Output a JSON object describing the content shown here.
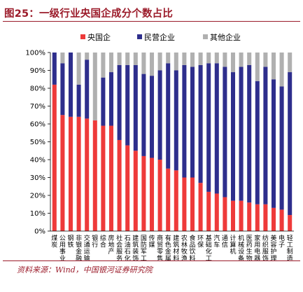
{
  "figure": {
    "title": "图25：一级行业央国企成分个数占比",
    "source": "资料来源：Wind，中国银河证券研究院"
  },
  "chart_data": {
    "type": "bar",
    "stacked": true,
    "categories": [
      "煤炭",
      "公用事业",
      "钢铁",
      "非银金融",
      "交通运输",
      "银行",
      "综合",
      "房地产",
      "社会服务",
      "石油石化",
      "建筑装饰",
      "国防军工",
      "传媒",
      "商贸零售",
      "有色金属",
      "建筑材料",
      "农林牧渔",
      "食品饮料",
      "环保",
      "基础化工",
      "汽车",
      "通信",
      "计算机",
      "机械设备",
      "医药生物",
      "家用电器",
      "纺织服饰",
      "美容护理",
      "电子",
      "轻工制造"
    ],
    "series": [
      {
        "name": "央国企",
        "color": "#ee3a3a",
        "values": [
          82,
          65,
          64,
          64,
          63,
          62,
          59,
          59,
          51,
          48,
          45,
          42,
          41,
          40,
          35,
          34,
          30,
          30,
          27,
          22,
          21,
          19,
          17,
          17,
          16,
          15,
          15,
          13,
          12,
          9
        ]
      },
      {
        "name": "民营企业",
        "color": "#2e2e8c",
        "values": [
          18,
          29,
          36,
          18,
          33,
          0,
          27,
          30,
          42,
          45,
          48,
          46,
          46,
          50,
          59,
          56,
          63,
          62,
          66,
          72,
          73,
          73,
          72,
          75,
          77,
          69,
          77,
          72,
          69,
          80
        ]
      },
      {
        "name": "其他企业",
        "color": "#b0b0b0",
        "values": [
          0,
          6,
          0,
          18,
          4,
          38,
          14,
          11,
          7,
          7,
          7,
          12,
          13,
          10,
          6,
          10,
          7,
          8,
          7,
          6,
          6,
          8,
          11,
          8,
          7,
          16,
          8,
          15,
          19,
          11
        ]
      }
    ],
    "y_axis": {
      "min": 0,
      "max": 100,
      "step": 10,
      "unit": "%"
    },
    "legend_position": "top",
    "grid": false
  }
}
